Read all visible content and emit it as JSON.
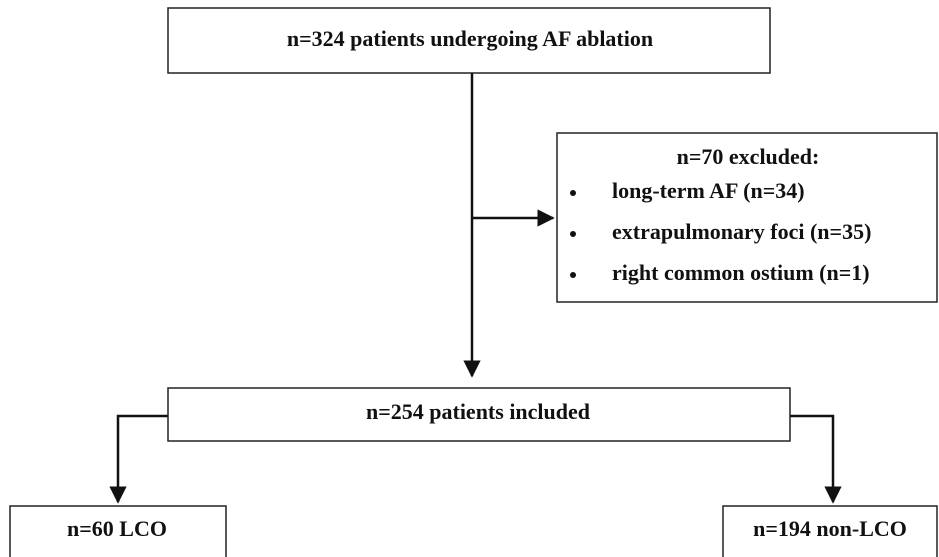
{
  "nodes": [
    {
      "label": "n=324 patients undergoing AF ablation"
    },
    {
      "label": "n=70 excluded:",
      "items": [
        "long-term AF (n=34)",
        "extrapulmonary foci (n=35)",
        "right common ostium (n=1)"
      ]
    },
    {
      "label": "n=254 patients included"
    },
    {
      "label": "n=60 LCO"
    },
    {
      "label": "n=194 non-LCO"
    }
  ]
}
